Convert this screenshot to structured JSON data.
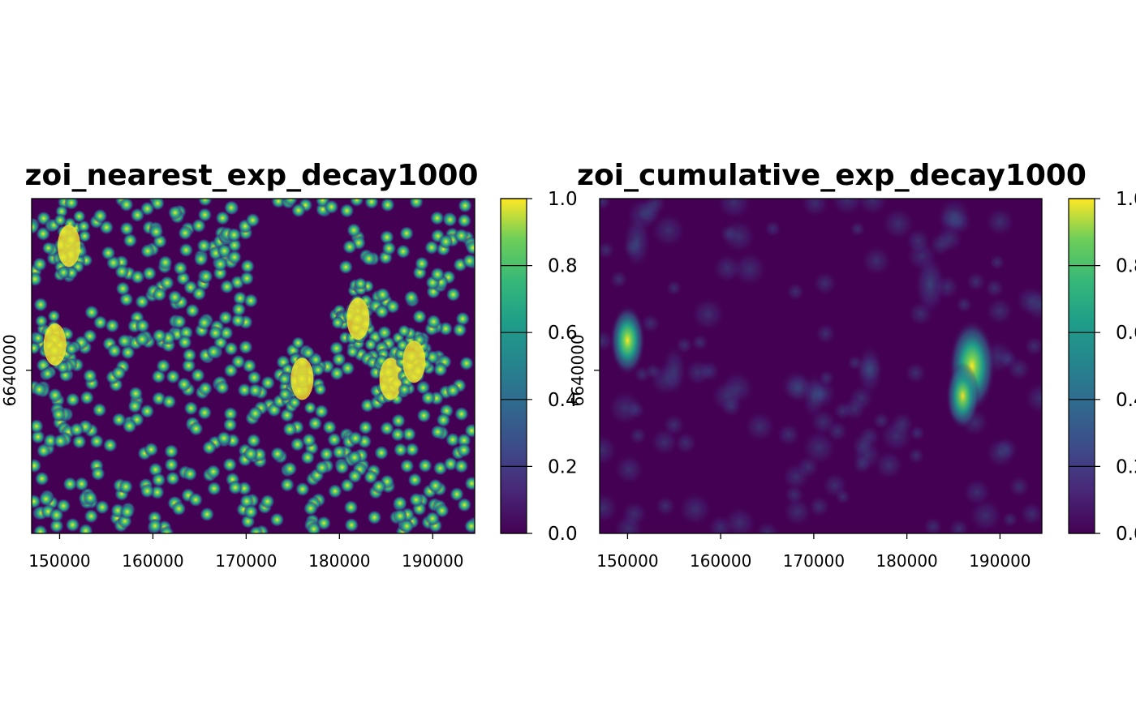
{
  "chart_data": [
    {
      "type": "heatmap",
      "title": "zoi_nearest_exp_decay1000",
      "xlabel": "",
      "ylabel": "",
      "xlim": [
        147000,
        194500
      ],
      "ylim": [
        6621000,
        6660000
      ],
      "x_ticks": [
        150000,
        160000,
        170000,
        180000,
        190000
      ],
      "x_tick_labels": [
        "150000",
        "160000",
        "170000",
        "180000",
        "190000"
      ],
      "y_ticks": [
        6640000
      ],
      "y_tick_labels": [
        "6640000"
      ],
      "value_range": [
        0,
        1
      ],
      "legend_ticks": [
        0.0,
        0.2,
        0.4,
        0.6,
        0.8,
        1.0
      ],
      "legend_tick_labels": [
        "0.0",
        "0.2",
        "0.4",
        "0.6",
        "0.8",
        "1.0"
      ],
      "colormap": [
        "#440154",
        "#3b528b",
        "#21918c",
        "#5ec962",
        "#fde725"
      ],
      "description_of_field": "dense scattered point sources, each a bright yellow peak decaying to dark purple within ~1 km",
      "clusters": [
        {
          "x": 185500,
          "y": 6639000,
          "value": 1.0
        },
        {
          "x": 188000,
          "y": 6641000,
          "value": 1.0
        },
        {
          "x": 182000,
          "y": 6646000,
          "value": 1.0
        },
        {
          "x": 149500,
          "y": 6643000,
          "value": 1.0
        },
        {
          "x": 151000,
          "y": 6654500,
          "value": 1.0
        },
        {
          "x": 176000,
          "y": 6639000,
          "value": 0.9
        }
      ]
    },
    {
      "type": "heatmap",
      "title": "zoi_cumulative_exp_decay1000",
      "xlabel": "",
      "ylabel": "",
      "xlim": [
        147000,
        194500
      ],
      "ylim": [
        6621000,
        6660000
      ],
      "x_ticks": [
        150000,
        160000,
        170000,
        180000,
        190000
      ],
      "x_tick_labels": [
        "150000",
        "160000",
        "170000",
        "180000",
        "190000"
      ],
      "y_ticks": [
        6640000
      ],
      "y_tick_labels": [
        "6640000"
      ],
      "value_range": [
        0,
        1
      ],
      "legend_ticks": [
        0.0,
        0.2,
        0.4,
        0.6,
        0.8,
        1.0
      ],
      "legend_tick_labels": [
        "0.0",
        "0.2",
        "0.4",
        "0.6",
        "0.8",
        "1.0"
      ],
      "colormap": [
        "#440154",
        "#3b528b",
        "#21918c",
        "#5ec962",
        "#fde725"
      ],
      "description_of_field": "smoothed cumulative surface, mostly dark purple, with hotspots",
      "clusters": [
        {
          "x": 187000,
          "y": 6640500,
          "value": 1.0
        },
        {
          "x": 186000,
          "y": 6637000,
          "value": 0.55
        },
        {
          "x": 150000,
          "y": 6643500,
          "value": 0.6
        },
        {
          "x": 182500,
          "y": 6650000,
          "value": 0.45
        },
        {
          "x": 151000,
          "y": 6655000,
          "value": 0.35
        },
        {
          "x": 176000,
          "y": 6640000,
          "value": 0.3
        },
        {
          "x": 155000,
          "y": 6640000,
          "value": 0.25
        },
        {
          "x": 170000,
          "y": 6637000,
          "value": 0.22
        }
      ]
    }
  ]
}
